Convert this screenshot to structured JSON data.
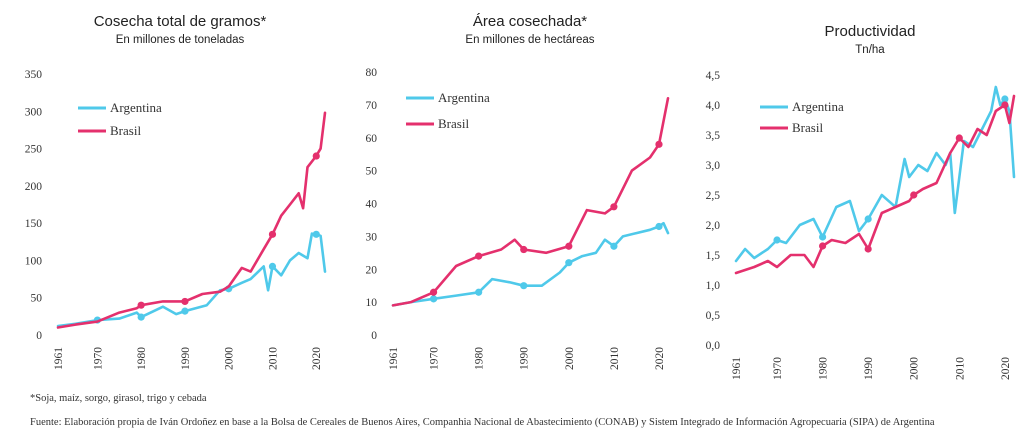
{
  "footnote": "*Soja, maíz, sorgo, girasol, trigo y cebada",
  "source": "Fuente: Elaboración propia de Iván Ordoñez en base a la Bolsa de Cereales de Buenos Aires, Companhia Nacional de Abastecimiento (CONAB) y Sistem Integrado de Información Agropecuaria (SIPA) de Argentina",
  "colors": {
    "argentina": "#4fc9ea",
    "brasil": "#e4306d"
  },
  "chart_data": [
    {
      "type": "line",
      "title": "Cosecha total de gramos*",
      "subtitle": "En millones de toneladas",
      "ylim": [
        0,
        350
      ],
      "yticks": [
        0,
        50,
        100,
        150,
        200,
        250,
        300,
        350
      ],
      "ytick_labels": [
        "0",
        "50",
        "100",
        "150",
        "200",
        "250",
        "300",
        "350"
      ],
      "xlim": [
        1961,
        2022
      ],
      "xticks": [
        1961,
        1970,
        1980,
        1990,
        2000,
        2010,
        2020
      ],
      "ytick_decimals": 0,
      "legend_position": "top-left",
      "series": [
        {
          "name": "Argentina",
          "color": "#4fc9ea",
          "x": [
            1961,
            1965,
            1970,
            1975,
            1979,
            1980,
            1985,
            1988,
            1990,
            1995,
            1998,
            2000,
            2003,
            2005,
            2008,
            2009,
            2010,
            2012,
            2014,
            2016,
            2018,
            2019,
            2020,
            2021,
            2022
          ],
          "y": [
            12,
            15,
            20,
            22,
            30,
            24,
            38,
            28,
            32,
            40,
            60,
            62,
            70,
            75,
            92,
            60,
            92,
            80,
            100,
            110,
            103,
            136,
            135,
            133,
            85
          ],
          "markers": [
            1970,
            1980,
            1990,
            2000,
            2010,
            2020
          ]
        },
        {
          "name": "Brasil",
          "color": "#e4306d",
          "x": [
            1961,
            1965,
            1970,
            1975,
            1979,
            1980,
            1985,
            1990,
            1994,
            1998,
            2000,
            2003,
            2005,
            2008,
            2010,
            2012,
            2014,
            2016,
            2017,
            2018,
            2020,
            2021,
            2022
          ],
          "y": [
            10,
            14,
            18,
            30,
            36,
            40,
            45,
            45,
            55,
            58,
            65,
            90,
            85,
            115,
            135,
            160,
            175,
            190,
            170,
            225,
            240,
            250,
            298
          ],
          "markers": [
            1980,
            1990,
            2010,
            2020
          ]
        }
      ]
    },
    {
      "type": "line",
      "title": "Área cosechada*",
      "subtitle": "En millones de hectáreas",
      "ylim": [
        0,
        80
      ],
      "yticks": [
        0,
        10,
        20,
        30,
        40,
        50,
        60,
        70,
        80
      ],
      "ytick_labels": [
        "0",
        "10",
        "20",
        "30",
        "40",
        "50",
        "60",
        "70",
        "80"
      ],
      "xlim": [
        1961,
        2022
      ],
      "xticks": [
        1961,
        1970,
        1980,
        1990,
        2000,
        2010,
        2020
      ],
      "ytick_decimals": 0,
      "legend_position": "top-left",
      "series": [
        {
          "name": "Argentina",
          "color": "#4fc9ea",
          "x": [
            1961,
            1965,
            1970,
            1975,
            1980,
            1983,
            1987,
            1990,
            1994,
            1998,
            2000,
            2003,
            2006,
            2008,
            2010,
            2012,
            2015,
            2018,
            2020,
            2021,
            2022
          ],
          "y": [
            9,
            10,
            11,
            12,
            13,
            17,
            16,
            15,
            15,
            19,
            22,
            24,
            25,
            29,
            27,
            30,
            31,
            32,
            33,
            34,
            31
          ],
          "markers": [
            1970,
            1980,
            1990,
            2000,
            2010,
            2020
          ]
        },
        {
          "name": "Brasil",
          "color": "#e4306d",
          "x": [
            1961,
            1965,
            1970,
            1975,
            1980,
            1985,
            1988,
            1990,
            1995,
            2000,
            2004,
            2008,
            2010,
            2014,
            2018,
            2020,
            2022
          ],
          "y": [
            9,
            10,
            13,
            21,
            24,
            26,
            29,
            26,
            25,
            27,
            38,
            37,
            39,
            50,
            54,
            58,
            72
          ],
          "markers": [
            1970,
            1980,
            1990,
            2000,
            2010,
            2020
          ]
        }
      ]
    },
    {
      "type": "line",
      "title": "Productividad",
      "subtitle": "Tn/ha",
      "ylim": [
        0,
        4.5
      ],
      "yticks": [
        0,
        0.5,
        1.0,
        1.5,
        2.0,
        2.5,
        3.0,
        3.5,
        4.0,
        4.5
      ],
      "ytick_labels": [
        "0,0",
        "0,5",
        "1,0",
        "1,5",
        "2,0",
        "2,5",
        "3,0",
        "3,5",
        "4,0",
        "4,5"
      ],
      "xlim": [
        1961,
        2022
      ],
      "xticks": [
        1961,
        1970,
        1980,
        1990,
        2000,
        2010,
        2020
      ],
      "ytick_decimals": 1,
      "legend_position": "top-left",
      "series": [
        {
          "name": "Argentina",
          "color": "#4fc9ea",
          "x": [
            1961,
            1963,
            1965,
            1968,
            1970,
            1972,
            1975,
            1978,
            1980,
            1983,
            1986,
            1988,
            1990,
            1993,
            1996,
            1998,
            1999,
            2001,
            2003,
            2005,
            2007,
            2008,
            2009,
            2011,
            2013,
            2015,
            2017,
            2018,
            2019,
            2020,
            2021,
            2022
          ],
          "y": [
            1.4,
            1.6,
            1.45,
            1.6,
            1.75,
            1.7,
            2.0,
            2.1,
            1.8,
            2.3,
            2.4,
            1.9,
            2.1,
            2.5,
            2.3,
            3.1,
            2.8,
            3.0,
            2.9,
            3.2,
            3.0,
            3.2,
            2.2,
            3.4,
            3.3,
            3.6,
            3.9,
            4.3,
            4.0,
            4.1,
            3.9,
            2.8
          ],
          "markers": [
            1970,
            1980,
            1990,
            2000,
            2010,
            2020
          ]
        },
        {
          "name": "Brasil",
          "color": "#e4306d",
          "x": [
            1961,
            1963,
            1965,
            1968,
            1970,
            1973,
            1976,
            1978,
            1980,
            1982,
            1985,
            1988,
            1990,
            1993,
            1996,
            1999,
            2000,
            2002,
            2005,
            2008,
            2010,
            2012,
            2014,
            2016,
            2018,
            2020,
            2021,
            2022
          ],
          "y": [
            1.2,
            1.25,
            1.3,
            1.4,
            1.3,
            1.5,
            1.5,
            1.3,
            1.65,
            1.75,
            1.7,
            1.85,
            1.6,
            2.2,
            2.3,
            2.4,
            2.5,
            2.6,
            2.7,
            3.2,
            3.45,
            3.3,
            3.6,
            3.5,
            3.9,
            4.0,
            3.7,
            4.15
          ],
          "markers": [
            1980,
            1990,
            2000,
            2010,
            2020
          ]
        }
      ]
    }
  ]
}
